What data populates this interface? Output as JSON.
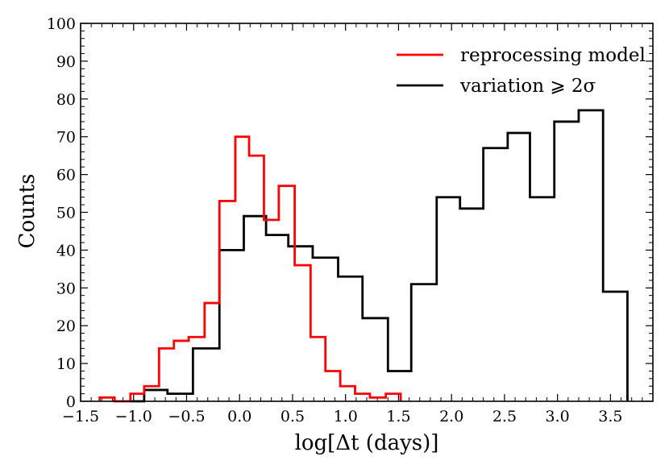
{
  "chart_data": {
    "type": "histogram",
    "xlabel": "log[Δt (days)]",
    "ylabel": "Counts",
    "xlim": [
      -1.5,
      3.9
    ],
    "ylim": [
      0,
      100
    ],
    "xticks": [
      -1.5,
      -1.0,
      -0.5,
      0.0,
      0.5,
      1.0,
      1.5,
      2.0,
      2.5,
      3.0,
      3.5
    ],
    "xtick_labels": [
      "−1.5",
      "−1.0",
      "−0.5",
      "0.0",
      "0.5",
      "1.0",
      "1.5",
      "2.0",
      "2.5",
      "3.0",
      "3.5"
    ],
    "yticks": [
      0,
      10,
      20,
      30,
      40,
      50,
      60,
      70,
      80,
      90,
      100
    ],
    "ytick_labels": [
      "0",
      "10",
      "20",
      "30",
      "40",
      "50",
      "60",
      "70",
      "80",
      "90",
      "100"
    ],
    "legend_position": "top-right",
    "series": [
      {
        "name": "reprocessing model",
        "color": "#ff0000",
        "edges": [
          -1.32,
          -1.18,
          -1.03,
          -0.9,
          -0.76,
          -0.62,
          -0.48,
          -0.33,
          -0.19,
          -0.04,
          0.09,
          0.23,
          0.37,
          0.52,
          0.67,
          0.81,
          0.95,
          1.09,
          1.23,
          1.38,
          1.52
        ],
        "counts": [
          1,
          0,
          2,
          4,
          14,
          16,
          17,
          26,
          53,
          70,
          65,
          48,
          57,
          36,
          17,
          8,
          4,
          2,
          1,
          2
        ]
      },
      {
        "name": "variation ⩾ 2σ",
        "color": "#000000",
        "edges": [
          -1.02,
          -0.9,
          -0.68,
          -0.44,
          -0.19,
          0.04,
          0.25,
          0.46,
          0.69,
          0.93,
          1.16,
          1.4,
          1.62,
          1.86,
          2.08,
          2.3,
          2.53,
          2.74,
          2.97,
          3.2,
          3.43,
          3.66
        ],
        "counts": [
          0,
          3,
          2,
          14,
          40,
          49,
          44,
          41,
          38,
          33,
          22,
          8,
          31,
          54,
          51,
          67,
          71,
          54,
          74,
          77,
          29
        ]
      }
    ]
  }
}
